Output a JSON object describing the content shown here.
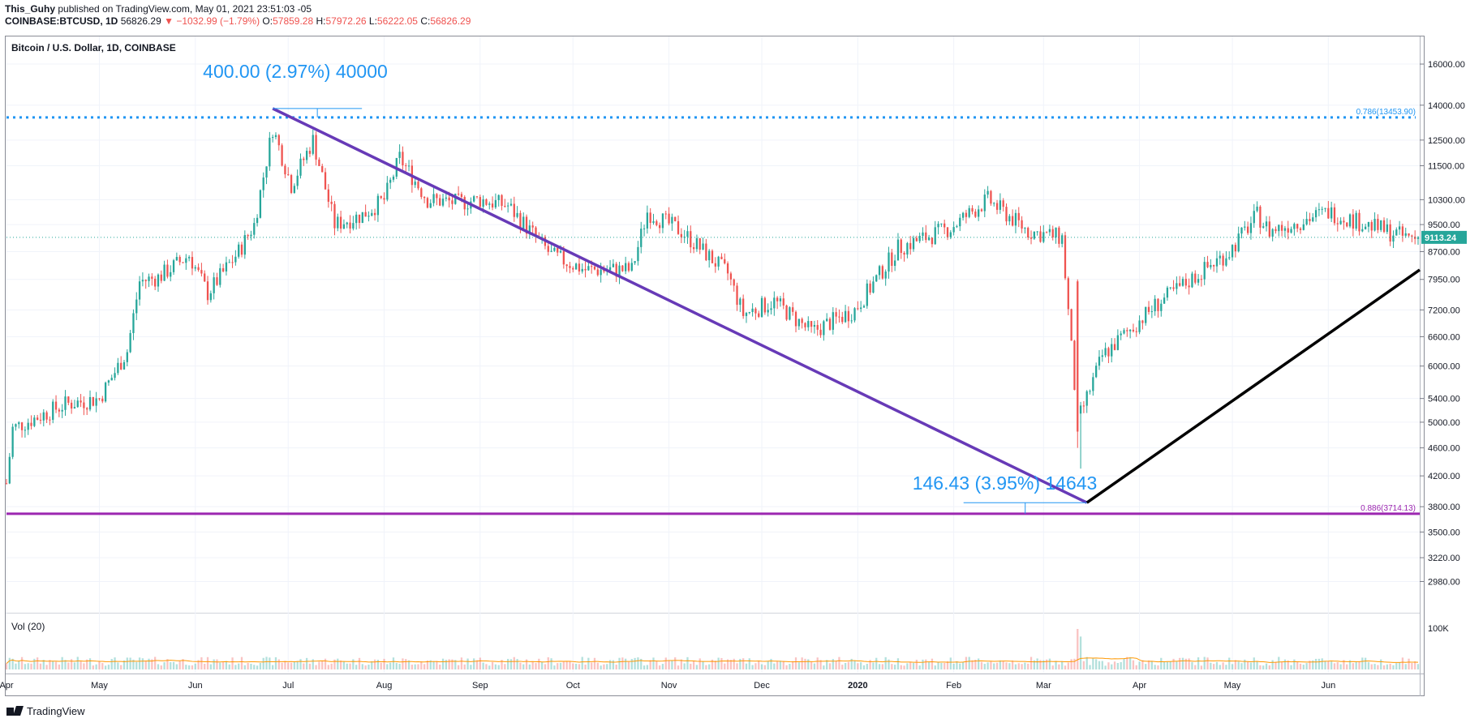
{
  "header": {
    "author": "This_Guhy",
    "published": "published on TradingView.com, May 01, 2021 23:51:03 -05",
    "symbol": "COINBASE:BTCUSD, 1D",
    "last": "56826.29",
    "change": "−1032.99 (−1.79%)",
    "o_label": "O:",
    "o_value": "57859.28",
    "h_label": "H:",
    "h_value": "57972.26",
    "l_label": "L:",
    "l_value": "56222.05",
    "c_label": "C:",
    "c_value": "56826.29"
  },
  "chart_title": "Bitcoin / U.S. Dollar, 1D, COINBASE",
  "volume_label": "Vol (20)",
  "brand": "TradingView",
  "colors": {
    "up": "#26a69a",
    "down": "#ef5350",
    "trendline": "#673ab7",
    "support_line": "#9c27b0",
    "resistance_dotted": "#2196f3",
    "projection_line": "#000000",
    "price_badge": "#26a69a",
    "volume_ma": "#ff9800"
  },
  "chart_data": {
    "type": "candlestick",
    "price_scale": "log",
    "ylim": [
      2700,
      17500
    ],
    "y_ticks": [
      "16000.00",
      "14000.00",
      "12500.00",
      "11500.00",
      "10300.00",
      "9500.00",
      "8700.00",
      "7950.00",
      "7200.00",
      "6600.00",
      "6000.00",
      "5400.00",
      "5000.00",
      "4600.00",
      "4200.00",
      "3800.00",
      "3500.00",
      "3220.00",
      "2980.00"
    ],
    "x_ticks": [
      "Apr",
      "May",
      "Jun",
      "Jul",
      "Aug",
      "Sep",
      "Oct",
      "Nov",
      "Dec",
      "2020",
      "Feb",
      "Mar",
      "Apr",
      "May",
      "Jun"
    ],
    "x_range": [
      "2019-04-01",
      "2020-06-30"
    ],
    "current_price": "9113.24",
    "ohlc_path_approx": [
      [
        "2019-04-01",
        4100
      ],
      [
        "2019-04-03",
        4900
      ],
      [
        "2019-04-20",
        5300
      ],
      [
        "2019-05-01",
        5400
      ],
      [
        "2019-05-10",
        6300
      ],
      [
        "2019-05-14",
        7900
      ],
      [
        "2019-05-20",
        8000
      ],
      [
        "2019-05-30",
        8600
      ],
      [
        "2019-06-05",
        7600
      ],
      [
        "2019-06-15",
        8700
      ],
      [
        "2019-06-20",
        9500
      ],
      [
        "2019-06-26",
        13000
      ],
      [
        "2019-07-02",
        10800
      ],
      [
        "2019-07-09",
        12500
      ],
      [
        "2019-07-16",
        9500
      ],
      [
        "2019-07-25",
        9800
      ],
      [
        "2019-08-01",
        10300
      ],
      [
        "2019-08-06",
        11800
      ],
      [
        "2019-08-15",
        10300
      ],
      [
        "2019-08-25",
        10200
      ],
      [
        "2019-09-01",
        10300
      ],
      [
        "2019-09-10",
        10100
      ],
      [
        "2019-09-24",
        8600
      ],
      [
        "2019-10-05",
        8200
      ],
      [
        "2019-10-20",
        8200
      ],
      [
        "2019-10-25",
        9900
      ],
      [
        "2019-11-05",
        9300
      ],
      [
        "2019-11-20",
        8100
      ],
      [
        "2019-11-25",
        7100
      ],
      [
        "2019-12-05",
        7400
      ],
      [
        "2019-12-17",
        6700
      ],
      [
        "2019-12-31",
        7200
      ],
      [
        "2020-01-14",
        8800
      ],
      [
        "2020-01-31",
        9400
      ],
      [
        "2020-02-12",
        10300
      ],
      [
        "2020-02-25",
        9300
      ],
      [
        "2020-03-07",
        9100
      ],
      [
        "2020-03-12",
        5000
      ],
      [
        "2020-03-20",
        6200
      ],
      [
        "2020-04-06",
        7300
      ],
      [
        "2020-04-30",
        8700
      ],
      [
        "2020-05-09",
        9800
      ],
      [
        "2020-05-13",
        9300
      ],
      [
        "2020-06-01",
        9900
      ],
      [
        "2020-06-26",
        9113.24
      ]
    ],
    "volume_peak_label": "100K"
  },
  "annotations": {
    "top_measure": "400.00 (2.97%) 40000",
    "bottom_measure": "146.43 (3.95%) 14643",
    "fib_top": "0.786(13453.90)",
    "fib_bottom": "0.886(3714.13)"
  }
}
